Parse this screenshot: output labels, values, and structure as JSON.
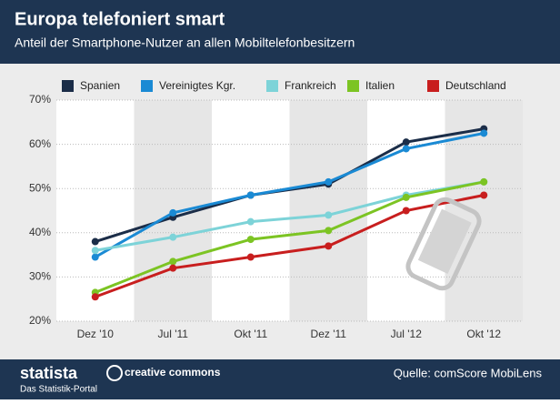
{
  "chart_data": {
    "type": "line",
    "title": "Europa telefoniert smart",
    "subtitle": "Anteil der Smartphone-Nutzer an allen Mobiltelefonbesitzern",
    "categories": [
      "Dez '10",
      "Jul '11",
      "Okt '11",
      "Dez '11",
      "Jul '12",
      "Okt '12"
    ],
    "series": [
      {
        "name": "Spanien",
        "color": "#1b2d48",
        "values": [
          38,
          43.5,
          48.5,
          51,
          60.5,
          63.5
        ]
      },
      {
        "name": "Vereinigtes Kgr.",
        "color": "#1a8ad4",
        "values": [
          34.5,
          44.5,
          48.5,
          51.5,
          59,
          62.5
        ]
      },
      {
        "name": "Frankreich",
        "color": "#7dd3d8",
        "values": [
          36,
          39,
          42.5,
          44,
          48.5,
          51.5
        ]
      },
      {
        "name": "Italien",
        "color": "#7cc423",
        "values": [
          26.5,
          33.5,
          38.5,
          40.5,
          48,
          51.5
        ]
      },
      {
        "name": "Deutschland",
        "color": "#c81e1e",
        "values": [
          25.5,
          32,
          34.5,
          37,
          45,
          48.5
        ]
      }
    ],
    "ylim": [
      20,
      70
    ],
    "yticks": [
      {
        "value": 20,
        "label": "20%"
      },
      {
        "value": 30,
        "label": "30%"
      },
      {
        "value": 40,
        "label": "40%"
      },
      {
        "value": 50,
        "label": "50%"
      },
      {
        "value": 60,
        "label": "60%"
      },
      {
        "value": 70,
        "label": "70%"
      }
    ],
    "grid": true
  },
  "footer": {
    "brand": "statista",
    "tagline": "Das Statistik-Portal",
    "license": "creative commons",
    "source": "Quelle: comScore MobiLens"
  }
}
